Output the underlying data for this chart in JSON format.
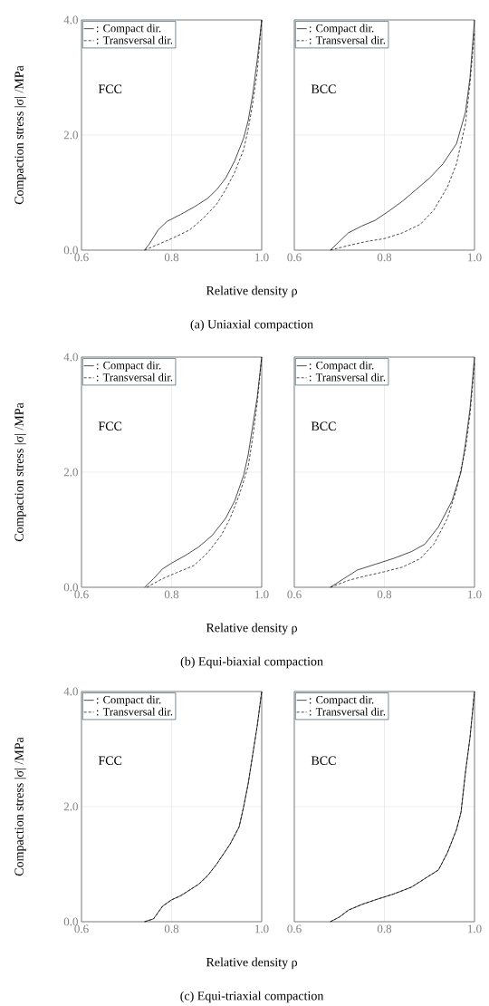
{
  "chart_data": [
    {
      "type": "line",
      "xlabel": "Relative density ρ",
      "ylabel": "Compaction stress |σ| /MPa",
      "subtitle": "(a) Uniaxial compaction",
      "annotations": [
        "FCC"
      ],
      "xlim": [
        0.6,
        1.0
      ],
      "ylim": [
        0,
        4
      ],
      "xticks": [
        {
          "value": 0.6,
          "label": "0.6"
        },
        {
          "value": 0.8,
          "label": "0.8"
        },
        {
          "value": 1.0,
          "label": "1.0"
        }
      ],
      "yticks": [
        {
          "value": 0,
          "label": "0.0"
        },
        {
          "value": 2,
          "label": "2.0"
        },
        {
          "value": 4,
          "label": "4.0"
        }
      ],
      "grid": true,
      "legend": "top left",
      "series": [
        {
          "name": ": Compact dir.",
          "color": "#000000",
          "line_style": "solid",
          "x": [
            0.74,
            0.75,
            0.77,
            0.79,
            0.82,
            0.85,
            0.88,
            0.9,
            0.92,
            0.94,
            0.96,
            0.97,
            0.98,
            0.99,
            1.0
          ],
          "values": [
            0,
            0.1,
            0.35,
            0.5,
            0.62,
            0.75,
            0.9,
            1.05,
            1.25,
            1.55,
            1.95,
            2.25,
            2.7,
            3.3,
            4.0
          ]
        },
        {
          "name": ": Transversal dir.",
          "color": "#000000",
          "line_style": "dashed",
          "x": [
            0.74,
            0.77,
            0.8,
            0.84,
            0.87,
            0.9,
            0.92,
            0.94,
            0.96,
            0.97,
            0.98,
            0.99,
            1.0
          ],
          "values": [
            0,
            0.1,
            0.2,
            0.35,
            0.55,
            0.8,
            1.05,
            1.35,
            1.75,
            2.1,
            2.55,
            3.1,
            4.0
          ]
        }
      ]
    },
    {
      "type": "line",
      "annotations": [
        "BCC"
      ],
      "xlim": [
        0.6,
        1.0
      ],
      "ylim": [
        0,
        4
      ],
      "xticks": [
        {
          "value": 0.6,
          "label": "0.6"
        },
        {
          "value": 0.8,
          "label": "0.8"
        },
        {
          "value": 1.0,
          "label": "1.0"
        }
      ],
      "yticks": [
        0,
        2,
        4
      ],
      "tick_labels": "x",
      "grid": true,
      "legend": "top left",
      "series": [
        {
          "name": ": Compact dir.",
          "color": "#000000",
          "line_style": "solid",
          "x": [
            0.68,
            0.7,
            0.72,
            0.75,
            0.78,
            0.81,
            0.84,
            0.87,
            0.9,
            0.93,
            0.96,
            0.98,
            0.99,
            1.0
          ],
          "values": [
            0,
            0.15,
            0.3,
            0.42,
            0.52,
            0.68,
            0.85,
            1.05,
            1.25,
            1.5,
            1.85,
            2.4,
            3.0,
            4.0
          ]
        },
        {
          "name": ": Transversal dir.",
          "color": "#000000",
          "line_style": "dashed",
          "x": [
            0.68,
            0.72,
            0.76,
            0.8,
            0.84,
            0.88,
            0.91,
            0.94,
            0.96,
            0.98,
            0.99,
            1.0
          ],
          "values": [
            0,
            0.08,
            0.15,
            0.2,
            0.3,
            0.45,
            0.7,
            1.1,
            1.5,
            2.2,
            2.9,
            3.8
          ]
        }
      ]
    },
    {
      "type": "line",
      "xlabel": "Relative density ρ",
      "ylabel": "Compaction stress |σ| /MPa",
      "subtitle": "(b) Equi-biaxial compaction",
      "annotations": [
        "FCC"
      ],
      "xlim": [
        0.6,
        1.0
      ],
      "ylim": [
        0,
        4
      ],
      "xticks": [
        {
          "value": 0.6,
          "label": "0.6"
        },
        {
          "value": 0.8,
          "label": "0.8"
        },
        {
          "value": 1.0,
          "label": "1.0"
        }
      ],
      "yticks": [
        {
          "value": 0,
          "label": "0.0"
        },
        {
          "value": 2,
          "label": "2.0"
        },
        {
          "value": 4,
          "label": "4.0"
        }
      ],
      "grid": true,
      "legend": "top left",
      "series": [
        {
          "name": ": Compact dir.",
          "color": "#000000",
          "line_style": "solid",
          "x": [
            0.74,
            0.76,
            0.78,
            0.8,
            0.83,
            0.86,
            0.89,
            0.92,
            0.94,
            0.96,
            0.97,
            0.98,
            0.99,
            1.0
          ],
          "values": [
            0,
            0.15,
            0.32,
            0.42,
            0.55,
            0.7,
            0.9,
            1.2,
            1.5,
            1.95,
            2.3,
            2.8,
            3.3,
            4.0
          ]
        },
        {
          "name": ": Transversal dir.",
          "color": "#000000",
          "line_style": "dashed",
          "x": [
            0.745,
            0.78,
            0.81,
            0.85,
            0.88,
            0.91,
            0.93,
            0.95,
            0.97,
            0.98,
            0.99,
            1.0
          ],
          "values": [
            0,
            0.15,
            0.25,
            0.38,
            0.6,
            0.9,
            1.2,
            1.6,
            2.1,
            2.6,
            3.2,
            4.0
          ]
        }
      ]
    },
    {
      "type": "line",
      "annotations": [
        "BCC"
      ],
      "xlim": [
        0.6,
        1.0
      ],
      "ylim": [
        0,
        4
      ],
      "xticks": [
        {
          "value": 0.6,
          "label": "0.6"
        },
        {
          "value": 0.8,
          "label": "0.8"
        },
        {
          "value": 1.0,
          "label": "1.0"
        }
      ],
      "yticks": [
        0,
        2,
        4
      ],
      "tick_labels": "x",
      "grid": true,
      "legend": "top left",
      "series": [
        {
          "name": ": Compact dir.",
          "color": "#000000",
          "line_style": "solid",
          "x": [
            0.68,
            0.71,
            0.74,
            0.78,
            0.82,
            0.86,
            0.89,
            0.92,
            0.95,
            0.97,
            0.98,
            0.99,
            1.0
          ],
          "values": [
            0,
            0.15,
            0.3,
            0.4,
            0.5,
            0.62,
            0.75,
            1.05,
            1.5,
            2.0,
            2.5,
            3.1,
            4.0
          ]
        },
        {
          "name": ": Transversal dir.",
          "color": "#000000",
          "line_style": "dashed",
          "x": [
            0.68,
            0.72,
            0.76,
            0.8,
            0.84,
            0.88,
            0.91,
            0.94,
            0.96,
            0.98,
            0.99,
            1.0
          ],
          "values": [
            0,
            0.12,
            0.2,
            0.27,
            0.35,
            0.5,
            0.75,
            1.2,
            1.7,
            2.4,
            3.0,
            3.9
          ]
        }
      ]
    },
    {
      "type": "line",
      "xlabel": "Relative density ρ",
      "ylabel": "Compaction stress |σ| /MPa",
      "subtitle": "(c) Equi-triaxial compaction",
      "annotations": [
        "FCC"
      ],
      "xlim": [
        0.6,
        1.0
      ],
      "ylim": [
        0,
        4
      ],
      "xticks": [
        {
          "value": 0.6,
          "label": "0.6"
        },
        {
          "value": 0.8,
          "label": "0.8"
        },
        {
          "value": 1.0,
          "label": "1.0"
        }
      ],
      "yticks": [
        {
          "value": 0,
          "label": "0.0"
        },
        {
          "value": 2,
          "label": "2.0"
        },
        {
          "value": 4,
          "label": "4.0"
        }
      ],
      "grid": true,
      "legend": "top left",
      "series": [
        {
          "name": ": Compact dir.",
          "color": "#000000",
          "line_style": "solid",
          "x": [
            0.74,
            0.76,
            0.78,
            0.8,
            0.82,
            0.86,
            0.88,
            0.9,
            0.93,
            0.95,
            0.96,
            0.97,
            0.98,
            0.99,
            1.0
          ],
          "values": [
            0,
            0.05,
            0.27,
            0.38,
            0.45,
            0.65,
            0.8,
            1.0,
            1.35,
            1.65,
            2.0,
            2.4,
            2.9,
            3.4,
            4.0
          ]
        },
        {
          "name": ": Transversal dir.",
          "color": "#000000",
          "line_style": "dashed",
          "x": [
            0.74,
            0.76,
            0.78,
            0.8,
            0.82,
            0.86,
            0.88,
            0.9,
            0.93,
            0.95,
            0.96,
            0.97,
            0.98,
            0.99,
            1.0
          ],
          "values": [
            0,
            0.05,
            0.27,
            0.38,
            0.45,
            0.65,
            0.8,
            1.0,
            1.35,
            1.65,
            2.0,
            2.4,
            2.9,
            3.4,
            4.0
          ]
        }
      ]
    },
    {
      "type": "line",
      "annotations": [
        "BCC"
      ],
      "xlim": [
        0.6,
        1.0
      ],
      "ylim": [
        0,
        4
      ],
      "xticks": [
        {
          "value": 0.6,
          "label": "0.6"
        },
        {
          "value": 0.8,
          "label": "0.8"
        },
        {
          "value": 1.0,
          "label": "1.0"
        }
      ],
      "yticks": [
        0,
        2,
        4
      ],
      "tick_labels": "x",
      "grid": true,
      "legend": "top left",
      "series": [
        {
          "name": ": Compact dir.",
          "color": "#000000",
          "line_style": "solid",
          "x": [
            0.68,
            0.7,
            0.72,
            0.75,
            0.78,
            0.82,
            0.86,
            0.89,
            0.92,
            0.94,
            0.96,
            0.97,
            0.98,
            0.99,
            1.0
          ],
          "values": [
            0,
            0.08,
            0.2,
            0.3,
            0.38,
            0.48,
            0.6,
            0.75,
            0.9,
            1.2,
            1.6,
            1.9,
            2.6,
            3.2,
            4.0
          ]
        },
        {
          "name": ": Transversal dir.",
          "color": "#000000",
          "line_style": "dashed",
          "x": [
            0.68,
            0.7,
            0.72,
            0.75,
            0.78,
            0.82,
            0.86,
            0.89,
            0.92,
            0.94,
            0.96,
            0.97,
            0.98,
            0.99,
            1.0
          ],
          "values": [
            0,
            0.08,
            0.2,
            0.3,
            0.38,
            0.48,
            0.6,
            0.75,
            0.9,
            1.2,
            1.6,
            1.9,
            2.6,
            3.2,
            4.0
          ]
        }
      ]
    }
  ]
}
